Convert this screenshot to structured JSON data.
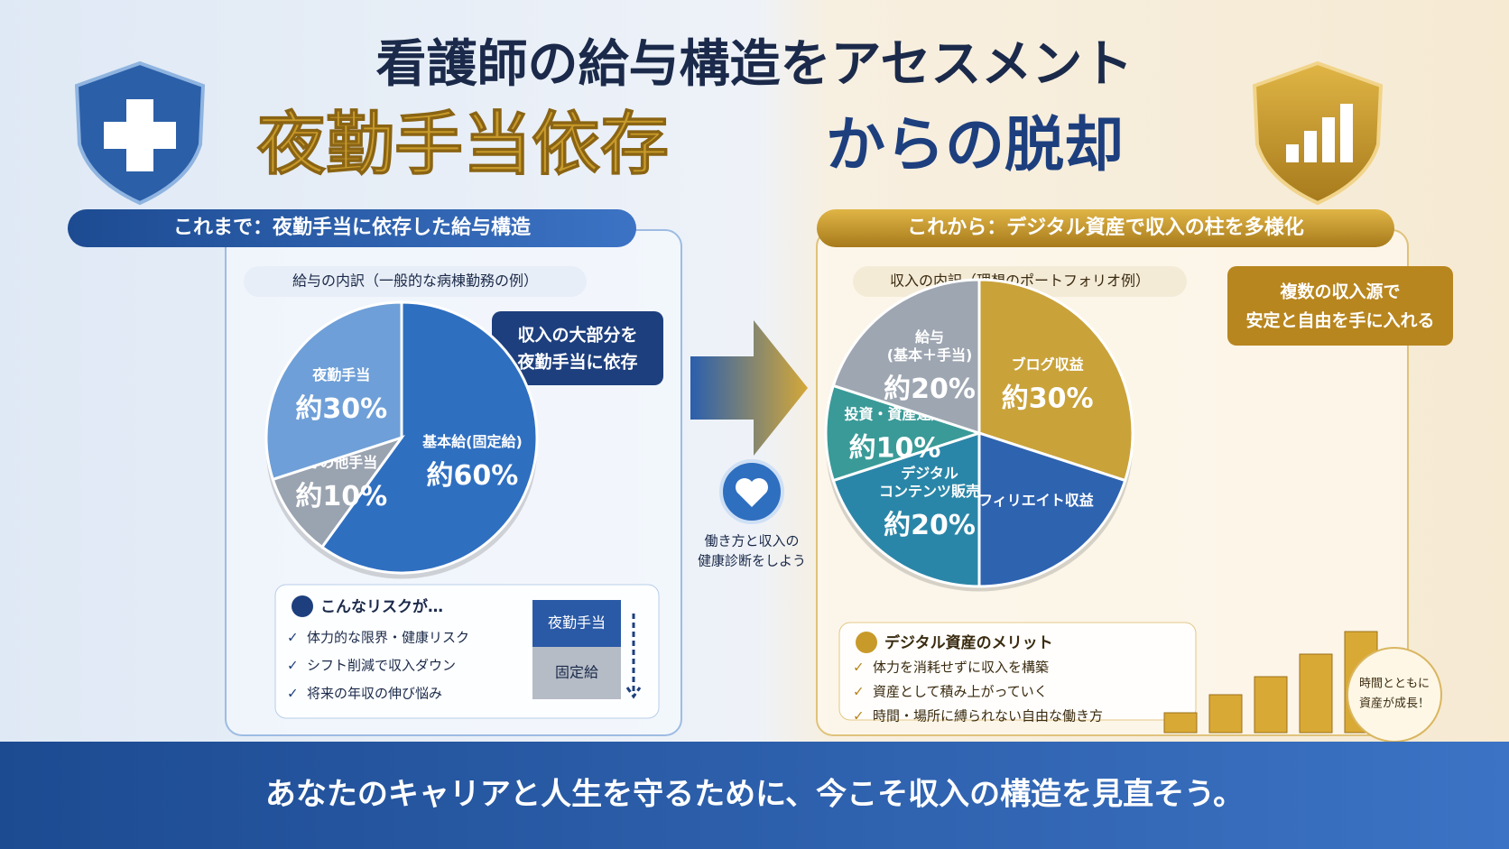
{
  "title": {
    "line1": "看護師の給与構造をアセスメント",
    "line2_highlight": "夜勤手当依存",
    "line2_rest": "からの脱却"
  },
  "left": {
    "header": "これまで：夜勤手当に依存した給与構造",
    "subheader": "給与の内訳（一般的な病棟勤務の例）",
    "callout": [
      "収入の大部分を",
      "夜勤手当に依存"
    ],
    "pie": {
      "type": "pie",
      "slices": [
        {
          "label": [
            "基本給(固定給)"
          ],
          "value": 60,
          "value_label": "約60%",
          "color": "#2f6fc0"
        },
        {
          "label": [
            "その他手当"
          ],
          "value": 10,
          "value_label": "約10%",
          "color": "#9aa3b0"
        },
        {
          "label": [
            "夜勤手当"
          ],
          "value": 30,
          "value_label": "約30%",
          "color": "#6e9fd8"
        }
      ]
    },
    "risk": {
      "title": "こんなリスクが…",
      "items": [
        "体力的な限界・健康リスク",
        "シフト削減で収入ダウン",
        "将来の年収の伸び悩み"
      ],
      "stack": [
        "夜勤手当",
        "固定給"
      ]
    }
  },
  "center": {
    "caption": [
      "働き方と収入の",
      "健康診断をしよう"
    ]
  },
  "right": {
    "header": "これから：デジタル資産で収入の柱を多様化",
    "subheader": "収入の内訳（理想のポートフォリオ例）",
    "callout": [
      "複数の収入源で",
      "安定と自由を手に入れる"
    ],
    "pie": {
      "type": "pie",
      "slices": [
        {
          "label": [
            "ブログ収益"
          ],
          "value": 30,
          "value_label": "約30%",
          "color": "#c9a23a"
        },
        {
          "label": [
            "アフィリエイト収益"
          ],
          "value": 20,
          "color": "#2e63b0"
        },
        {
          "label": [
            "デジタル",
            "コンテンツ販売"
          ],
          "value": 20,
          "value_label": "約20%",
          "color": "#2a86a8"
        },
        {
          "label": [
            "投資・資産運用"
          ],
          "value": 10,
          "value_label": "約10%",
          "color": "#3a9a98"
        },
        {
          "label": [
            "給与",
            "(基本＋手当)"
          ],
          "value": 20,
          "value_label": "約20%",
          "color": "#9ea6b2"
        }
      ]
    },
    "merit": {
      "title": "デジタル資産のメリット",
      "items": [
        "体力を消耗せずに収入を構築",
        "資産として積み上がっていく",
        "時間・場所に縛られない自由な働き方"
      ]
    },
    "badge": [
      "時間とともに",
      "資産が成長！"
    ]
  },
  "footer": "あなたのキャリアと人生を守るために、今こそ収入の構造を見直そう。"
}
